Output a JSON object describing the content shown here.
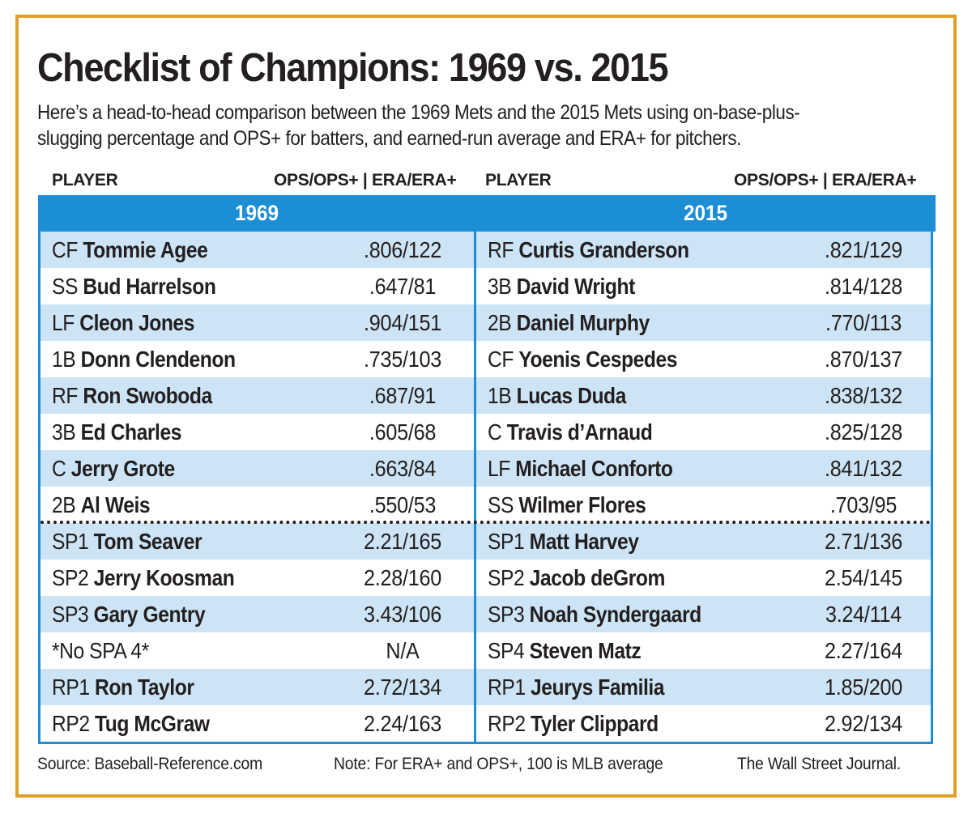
{
  "title": "Checklist of Champions: 1969 vs. 2015",
  "subtitle": "Here’s a head-to-head comparison between the 1969 Mets and the 2015 Mets using on-base-plus-slugging percentage and OPS+ for batters, and earned-run average and ERA+ for pitchers.",
  "header": {
    "left_player": "PLAYER",
    "left_stat": "OPS/OPS+ | ERA/ERA+",
    "right_player": "PLAYER",
    "right_stat": "OPS/OPS+ | ERA/ERA+"
  },
  "colors": {
    "accent": "#1b8ed6",
    "row_alt": "#cce4f5",
    "frame": "#e0a028"
  },
  "team1969": {
    "year": "1969",
    "rows": [
      {
        "pos": "CF",
        "name": "Tommie Agee",
        "stat": ".806/122"
      },
      {
        "pos": "SS",
        "name": "Bud Harrelson",
        "stat": ".647/81"
      },
      {
        "pos": "LF",
        "name": "Cleon Jones",
        "stat": ".904/151"
      },
      {
        "pos": "1B",
        "name": "Donn Clendenon",
        "stat": ".735/103"
      },
      {
        "pos": "RF",
        "name": "Ron Swoboda",
        "stat": ".687/91"
      },
      {
        "pos": "3B",
        "name": "Ed Charles",
        "stat": ".605/68"
      },
      {
        "pos": "C",
        "name": "Jerry Grote",
        "stat": ".663/84"
      },
      {
        "pos": "2B",
        "name": "Al Weis",
        "stat": ".550/53"
      },
      {
        "pos": "SP1",
        "name": "Tom Seaver",
        "stat": "2.21/165"
      },
      {
        "pos": "SP2",
        "name": "Jerry Koosman",
        "stat": "2.28/160"
      },
      {
        "pos": "SP3",
        "name": "Gary Gentry",
        "stat": "3.43/106"
      },
      {
        "pos": "*No SPA 4*",
        "name": "",
        "stat": "N/A"
      },
      {
        "pos": "RP1",
        "name": "Ron Taylor",
        "stat": "2.72/134"
      },
      {
        "pos": "RP2",
        "name": "Tug McGraw",
        "stat": "2.24/163"
      }
    ]
  },
  "team2015": {
    "year": "2015",
    "rows": [
      {
        "pos": "RF",
        "name": "Curtis Granderson",
        "stat": ".821/129"
      },
      {
        "pos": "3B",
        "name": "David Wright",
        "stat": ".814/128"
      },
      {
        "pos": "2B",
        "name": "Daniel Murphy",
        "stat": ".770/113"
      },
      {
        "pos": "CF",
        "name": "Yoenis Cespedes",
        "stat": ".870/137"
      },
      {
        "pos": "1B",
        "name": "Lucas Duda",
        "stat": ".838/132"
      },
      {
        "pos": "C",
        "name": "Travis d’Arnaud",
        "stat": ".825/128"
      },
      {
        "pos": "LF",
        "name": "Michael Conforto",
        "stat": ".841/132"
      },
      {
        "pos": "SS",
        "name": "Wilmer Flores",
        "stat": ".703/95"
      },
      {
        "pos": "SP1",
        "name": "Matt Harvey",
        "stat": "2.71/136"
      },
      {
        "pos": "SP2",
        "name": "Jacob deGrom",
        "stat": "2.54/145"
      },
      {
        "pos": "SP3",
        "name": "Noah Syndergaard",
        "stat": "3.24/114"
      },
      {
        "pos": "SP4",
        "name": "Steven Matz",
        "stat": "2.27/164"
      },
      {
        "pos": "RP1",
        "name": "Jeurys Familia",
        "stat": "1.85/200"
      },
      {
        "pos": "RP2",
        "name": "Tyler Clippard",
        "stat": "2.92/134"
      }
    ]
  },
  "footer": {
    "source": "Source:  Baseball-Reference.com",
    "note": "Note: For ERA+ and OPS+, 100 is MLB average",
    "credit": "The Wall Street Journal."
  }
}
